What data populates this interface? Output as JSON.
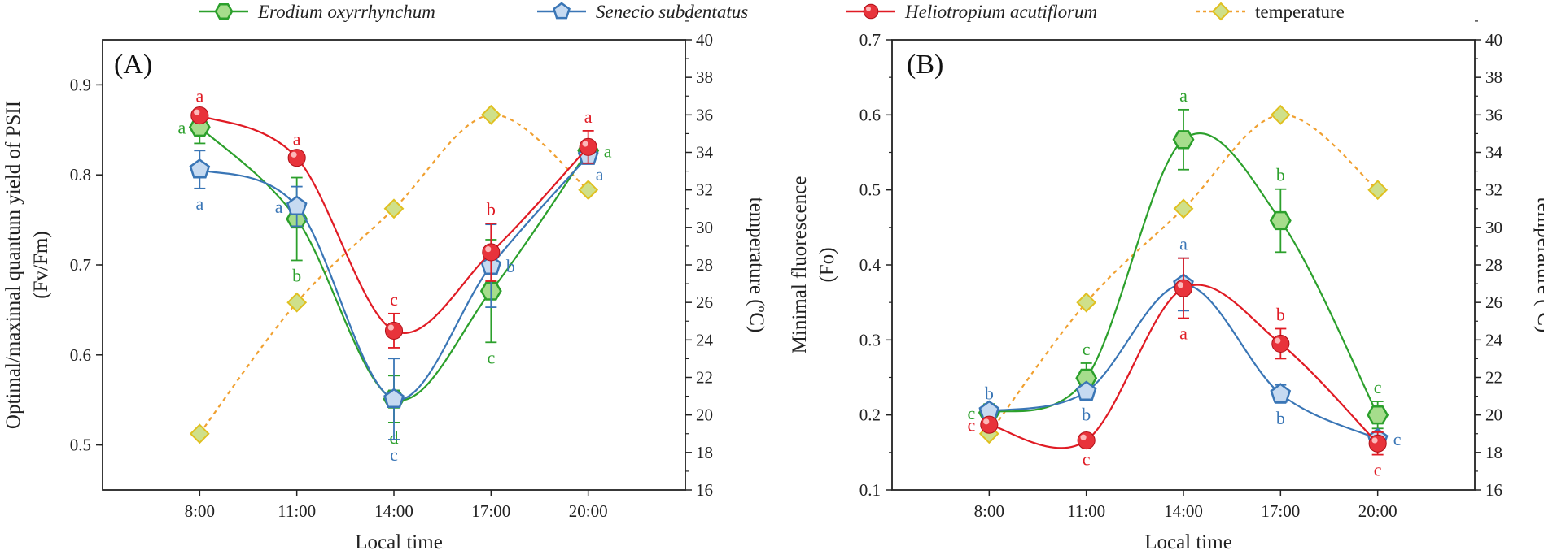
{
  "colors": {
    "erodium": "#2ca02c",
    "erodium_fill": "#a6dd8c",
    "senecio": "#3a76b6",
    "senecio_fill": "#c6daf1",
    "heliotropium": "#e01b24",
    "heliotropium_fill": "#e8333b",
    "temperature": "#f0a030",
    "temperature_fill": "#cfe08a",
    "temperature_edge": "#e0c020",
    "axis": "#222222"
  },
  "legend": [
    {
      "key": "erodium",
      "label": "Erodium oxyrrhynchum",
      "italic": true,
      "marker": "hexagon-icon"
    },
    {
      "key": "senecio",
      "label": "Senecio subdentatus",
      "italic": true,
      "marker": "pentagon-icon"
    },
    {
      "key": "heliotropium",
      "label": "Heliotropium acutiflorum",
      "italic": true,
      "marker": "sphere-icon"
    },
    {
      "key": "temperature",
      "label": "temperature",
      "italic": false,
      "marker": "diamond-icon"
    }
  ],
  "chart_data": [
    {
      "type": "line",
      "panel_label": "(A)",
      "title": "",
      "xlabel": "Local time",
      "ylabel": [
        "Optimal/maximal quantum yield of PSII",
        "(Fv/Fm)"
      ],
      "y2label": "temperature (ºC)",
      "categories": [
        "8:00",
        "11:00",
        "14:00",
        "17:00",
        "20:00"
      ],
      "ylim": [
        0.45,
        0.95
      ],
      "yticks": [
        "0.5",
        "0.6",
        "0.7",
        "0.8",
        "0.9"
      ],
      "y2lim": [
        16,
        40
      ],
      "y2ticks": [
        "16",
        "18",
        "20",
        "22",
        "24",
        "26",
        "28",
        "30",
        "32",
        "34",
        "36",
        "38",
        "40"
      ],
      "series": [
        {
          "key": "erodium",
          "name": "Erodium oxyrrhynchum",
          "values": [
            0.853,
            0.751,
            0.551,
            0.671,
            0.827
          ],
          "err": [
            0.018,
            0.046,
            0.026,
            0.057,
            0.008
          ],
          "letters": [
            "a",
            "b",
            "d",
            "c",
            "a"
          ],
          "letter_pos": [
            "left",
            "below",
            "below",
            "below",
            "right"
          ]
        },
        {
          "key": "senecio",
          "name": "Senecio subdentatus",
          "values": [
            0.806,
            0.765,
            0.551,
            0.699,
            0.821
          ],
          "err": [
            0.021,
            0.022,
            0.045,
            0.046,
            0.008
          ],
          "letters": [
            "a",
            "a",
            "c",
            "b",
            "a"
          ],
          "letter_pos": [
            "below",
            "left",
            "below",
            "right",
            "right-below"
          ]
        },
        {
          "key": "heliotropium",
          "name": "Heliotropium acutiflorum",
          "values": [
            0.866,
            0.819,
            0.627,
            0.714,
            0.831
          ],
          "err": [
            0.006,
            0.005,
            0.019,
            0.032,
            0.018
          ],
          "letters": [
            "a",
            "a",
            "c",
            "b",
            "a"
          ],
          "letter_pos": [
            "above",
            "above",
            "above",
            "above",
            "above"
          ]
        },
        {
          "key": "temperature",
          "name": "temperature",
          "axis": "right",
          "values": [
            19.0,
            26.0,
            31.0,
            36.0,
            32.0
          ],
          "err": [],
          "letters": [],
          "letter_pos": []
        }
      ]
    },
    {
      "type": "line",
      "panel_label": "(B)",
      "title": "",
      "xlabel": "Local time",
      "ylabel": [
        "Minimal fluorescence",
        "(Fo)"
      ],
      "y2label": "temperature (ºC)",
      "categories": [
        "8:00",
        "11:00",
        "14:00",
        "17:00",
        "20:00"
      ],
      "ylim": [
        0.1,
        0.7
      ],
      "yticks": [
        "0.1",
        "0.2",
        "0.3",
        "0.4",
        "0.5",
        "0.6",
        "0.7"
      ],
      "y2lim": [
        16,
        40
      ],
      "y2ticks": [
        "16",
        "18",
        "20",
        "22",
        "24",
        "26",
        "28",
        "30",
        "32",
        "34",
        "36",
        "38",
        "40"
      ],
      "series": [
        {
          "key": "erodium",
          "name": "Erodium oxyrrhynchum",
          "values": [
            0.203,
            0.249,
            0.567,
            0.459,
            0.2
          ],
          "err": [
            0.006,
            0.02,
            0.04,
            0.042,
            0.018
          ],
          "letters": [
            "c",
            "c",
            "a",
            "b",
            "c"
          ],
          "letter_pos": [
            "left",
            "above",
            "above",
            "above",
            "above"
          ]
        },
        {
          "key": "senecio",
          "name": "Senecio subdentatus",
          "values": [
            0.205,
            0.231,
            0.374,
            0.228,
            0.168
          ],
          "err": [
            0.005,
            0.01,
            0.035,
            0.012,
            0.005
          ],
          "letters": [
            "b",
            "b",
            "a",
            "b",
            "c"
          ],
          "letter_pos": [
            "above",
            "below",
            "above",
            "below",
            "right"
          ]
        },
        {
          "key": "heliotropium",
          "name": "Heliotropium acutiflorum",
          "values": [
            0.187,
            0.166,
            0.369,
            0.295,
            0.162
          ],
          "err": [
            0.005,
            0.005,
            0.04,
            0.02,
            0.015
          ],
          "letters": [
            "c",
            "c",
            "a",
            "b",
            "c"
          ],
          "letter_pos": [
            "left",
            "below",
            "below",
            "above",
            "below"
          ]
        },
        {
          "key": "temperature",
          "name": "temperature",
          "axis": "right",
          "values": [
            19.0,
            26.0,
            31.0,
            36.0,
            32.0
          ],
          "err": [],
          "letters": [],
          "letter_pos": []
        }
      ]
    }
  ]
}
